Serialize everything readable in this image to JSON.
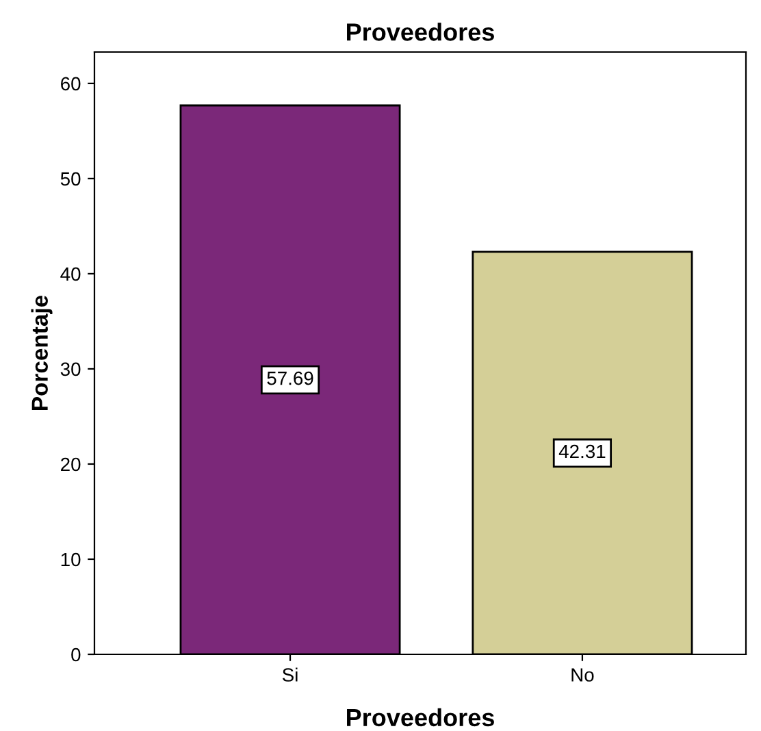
{
  "chart_data": {
    "type": "bar",
    "title": "Proveedores",
    "xlabel": "Proveedores",
    "ylabel": "Porcentaje",
    "categories": [
      "Si",
      "No"
    ],
    "values": [
      57.69,
      42.31
    ],
    "colors": [
      "#7b2879",
      "#d4cf97"
    ],
    "ylim": [
      0,
      63.3
    ],
    "yticks": [
      0,
      10,
      20,
      30,
      40,
      50,
      60
    ],
    "data_labels": true,
    "grid": false,
    "legend": false
  }
}
